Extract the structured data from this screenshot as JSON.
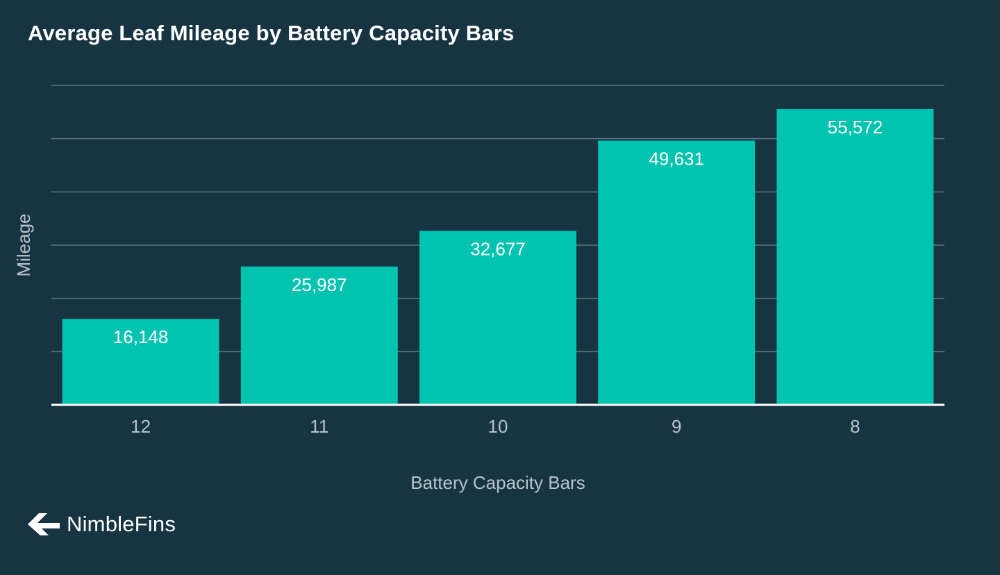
{
  "chart_data": {
    "type": "bar",
    "title": "Average Leaf Mileage by Battery Capacity Bars",
    "categories": [
      "12",
      "11",
      "10",
      "9",
      "8"
    ],
    "values": [
      16148,
      25987,
      32677,
      49631,
      55572
    ],
    "value_labels": [
      "16,148",
      "25,987",
      "32,677",
      "49,631",
      "55,572"
    ],
    "xlabel": "Battery Capacity Bars",
    "ylabel": "Mileage",
    "ylim": [
      0,
      60000
    ],
    "grid": true,
    "gridlines": [
      10000,
      20000,
      30000,
      40000,
      50000,
      60000
    ]
  },
  "brand": {
    "name": "NimbleFins"
  },
  "colors": {
    "background": "#163442",
    "bar": "#00c3b0",
    "grid": "#5f7780",
    "axis": "#ffffff",
    "text_light": "#b8c4c9",
    "label": "#ffffff"
  }
}
